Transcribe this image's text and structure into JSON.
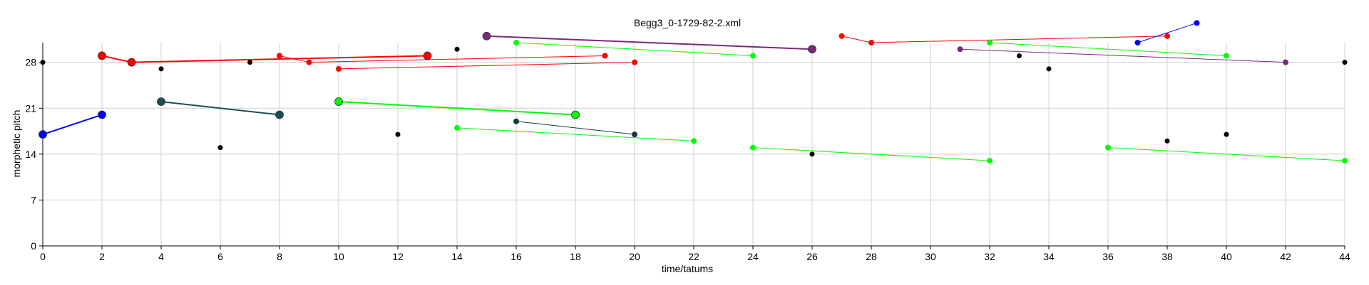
{
  "chart_data": {
    "type": "scatter",
    "title": "Begg3_0-1729-82-2.xml",
    "xlabel": "time/tatums",
    "ylabel": "morphetic pitch",
    "xlim": [
      0,
      44
    ],
    "ylim": [
      0,
      31
    ],
    "xticks": [
      0,
      2,
      4,
      6,
      8,
      10,
      12,
      14,
      16,
      18,
      20,
      22,
      24,
      26,
      28,
      30,
      32,
      34,
      36,
      38,
      40,
      42,
      44
    ],
    "yticks": [
      0,
      7,
      14,
      21,
      28
    ],
    "grid": true,
    "colors": {
      "red": "#ff0000",
      "blue": "#0000ff",
      "green": "#00ff00",
      "teal": "#1a4f55",
      "dark_teal": "#0e3c40",
      "purple": "#7a2a7a",
      "black": "#000000"
    },
    "segments": [
      {
        "color": "blue",
        "large": true,
        "points": [
          [
            0,
            17
          ],
          [
            2,
            20
          ]
        ]
      },
      {
        "color": "red",
        "large": true,
        "points": [
          [
            2,
            29
          ],
          [
            3,
            28
          ],
          [
            13,
            29
          ]
        ]
      },
      {
        "color": "teal",
        "large": true,
        "points": [
          [
            4,
            22
          ],
          [
            8,
            20
          ]
        ]
      },
      {
        "color": "green",
        "large": true,
        "points": [
          [
            10,
            22
          ],
          [
            18,
            20
          ]
        ]
      },
      {
        "color": "purple",
        "large": true,
        "points": [
          [
            15,
            32
          ],
          [
            26,
            30
          ]
        ]
      },
      {
        "color": "red",
        "large": false,
        "points": [
          [
            8,
            29
          ],
          [
            9,
            28
          ],
          [
            19,
            29
          ]
        ]
      },
      {
        "color": "red",
        "large": false,
        "points": [
          [
            10,
            27
          ],
          [
            20,
            28
          ]
        ]
      },
      {
        "color": "green",
        "large": false,
        "points": [
          [
            16,
            31
          ],
          [
            24,
            29
          ]
        ]
      },
      {
        "color": "green",
        "large": false,
        "points": [
          [
            14,
            18
          ],
          [
            22,
            16
          ]
        ]
      },
      {
        "color": "dark_teal",
        "large": false,
        "points": [
          [
            16,
            19
          ],
          [
            20,
            17
          ]
        ]
      },
      {
        "color": "green",
        "large": false,
        "points": [
          [
            24,
            15
          ],
          [
            32,
            13
          ]
        ]
      },
      {
        "color": "red",
        "large": false,
        "points": [
          [
            27,
            32
          ],
          [
            28,
            31
          ],
          [
            38,
            32
          ]
        ]
      },
      {
        "color": "green",
        "large": false,
        "points": [
          [
            32,
            31
          ],
          [
            40,
            29
          ]
        ]
      },
      {
        "color": "purple",
        "large": false,
        "points": [
          [
            31,
            30
          ],
          [
            42,
            28
          ]
        ]
      },
      {
        "color": "blue",
        "large": false,
        "points": [
          [
            37,
            31
          ],
          [
            39,
            34
          ]
        ]
      },
      {
        "color": "green",
        "large": false,
        "points": [
          [
            36,
            15
          ],
          [
            44,
            13
          ]
        ]
      }
    ],
    "isolated_points": [
      {
        "color": "black",
        "point": [
          0,
          28
        ]
      },
      {
        "color": "black",
        "point": [
          4,
          27
        ]
      },
      {
        "color": "black",
        "point": [
          6,
          15
        ]
      },
      {
        "color": "black",
        "point": [
          7,
          28
        ]
      },
      {
        "color": "black",
        "point": [
          12,
          17
        ]
      },
      {
        "color": "black",
        "point": [
          14,
          30
        ]
      },
      {
        "color": "black",
        "point": [
          26,
          14
        ]
      },
      {
        "color": "black",
        "point": [
          33,
          29
        ]
      },
      {
        "color": "black",
        "point": [
          34,
          27
        ]
      },
      {
        "color": "black",
        "point": [
          38,
          16
        ]
      },
      {
        "color": "black",
        "point": [
          40,
          17
        ]
      },
      {
        "color": "black",
        "point": [
          44,
          28
        ]
      }
    ]
  }
}
